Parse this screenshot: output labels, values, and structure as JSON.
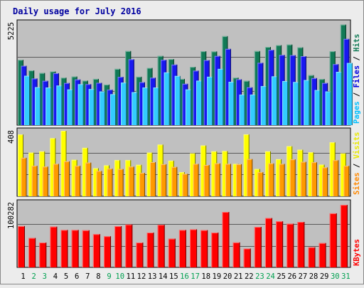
{
  "chart_data": {
    "type": "bar",
    "title": "Daily usage for July 2016",
    "categories": [
      "1",
      "2",
      "3",
      "4",
      "5",
      "6",
      "7",
      "8",
      "9",
      "10",
      "11",
      "12",
      "13",
      "14",
      "15",
      "16",
      "17",
      "18",
      "19",
      "20",
      "21",
      "22",
      "23",
      "24",
      "25",
      "26",
      "27",
      "28",
      "29",
      "30",
      "31"
    ],
    "weekend_days": [
      "2",
      "3",
      "9",
      "10",
      "16",
      "17",
      "23",
      "24",
      "30",
      "31"
    ],
    "panels": [
      {
        "id": "hits-files-pages",
        "ymax_label": "5225",
        "ylim": [
          0,
          5225
        ],
        "right_label_parts": [
          {
            "text": "Pages",
            "color": "#00c0ff"
          },
          {
            "text": " / ",
            "color": "#000000"
          },
          {
            "text": "Files",
            "color": "#0000e0"
          },
          {
            "text": " / ",
            "color": "#000000"
          },
          {
            "text": "Hits",
            "color": "#107a55"
          }
        ],
        "series": [
          {
            "name": "Hits",
            "color": "#117a56",
            "values": [
              3330,
              2790,
              2660,
              2740,
              2420,
              2480,
              2270,
              2360,
              2070,
              2870,
              3780,
              2470,
              2920,
              3530,
              3370,
              2360,
              2970,
              3770,
              3760,
              4540,
              2420,
              2260,
              3780,
              3990,
              4080,
              4110,
              3970,
              2550,
              2350,
              3770,
              5130
            ]
          },
          {
            "name": "Files",
            "color": "#1818f0",
            "values": [
              3030,
              2380,
              2260,
              2650,
              2150,
              2330,
              2090,
              2160,
              1810,
              2460,
              3360,
              2190,
              2420,
              3330,
              3090,
              2110,
              2780,
              3320,
              3530,
              3890,
              2340,
              1930,
              3180,
              3840,
              3580,
              3570,
              3520,
              2400,
              2150,
              3110,
              4400
            ]
          },
          {
            "name": "Pages",
            "color": "#33ccff",
            "values": [
              2520,
              1940,
              1920,
              2020,
              1820,
              2090,
              1840,
              1720,
              1580,
              2170,
              1680,
              1920,
              1920,
              2690,
              2510,
              1820,
              2270,
              2470,
              2870,
              2210,
              1560,
              1560,
              1990,
              2490,
              2250,
              2200,
              2300,
              1790,
              1720,
              2720,
              3170
            ]
          }
        ]
      },
      {
        "id": "visits-sites",
        "ymax_label": "408",
        "ylim": [
          0,
          408
        ],
        "right_label_parts": [
          {
            "text": "Sites",
            "color": "#ff8800"
          },
          {
            "text": " / ",
            "color": "#000000"
          },
          {
            "text": "Visits",
            "color": "#e8e800"
          }
        ],
        "series": [
          {
            "name": "Visits",
            "color": "#ffff00",
            "values": [
              385,
              272,
              280,
              362,
              408,
              227,
              302,
              175,
              193,
              225,
              225,
              196,
              272,
              322,
              222,
              150,
              268,
              317,
              280,
              282,
              202,
              386,
              170,
              280,
              231,
              312,
              290,
              274,
              197,
              336,
              268
            ]
          },
          {
            "name": "Sites",
            "color": "#ff9900",
            "values": [
              240,
              190,
              185,
              202,
              218,
              190,
              210,
              158,
              172,
              170,
              185,
              146,
              213,
              200,
              183,
              140,
              202,
              195,
              205,
              202,
              200,
              232,
              150,
              205,
              202,
              230,
              215,
              212,
              180,
              225,
              190
            ]
          }
        ]
      },
      {
        "id": "kbytes",
        "ymax_label": "100282",
        "ylim": [
          0,
          100282
        ],
        "right_label_parts": [
          {
            "text": "KBytes",
            "color": "#ff0000"
          }
        ],
        "series": [
          {
            "name": "KBytes",
            "color": "#ff0000",
            "values": [
              64000,
              45600,
              38500,
              63100,
              58000,
              58000,
              57500,
              51500,
              48200,
              63800,
              66400,
              38500,
              54000,
              66000,
              44500,
              58000,
              59000,
              57700,
              53900,
              85900,
              38700,
              29200,
              62700,
              76500,
              71400,
              67700,
              70500,
              31300,
              37700,
              83800,
              96800
            ]
          }
        ]
      }
    ],
    "colors": {
      "background": "#ececec",
      "plot_bg": "#c0c0c0",
      "grid": "#5a5a5a",
      "title": "#0000a0",
      "weekday_label": "#000000",
      "weekend_label": "#00a050"
    }
  }
}
